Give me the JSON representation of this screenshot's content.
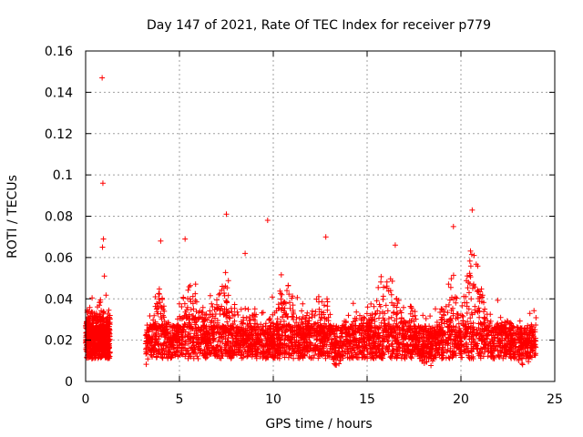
{
  "chart_data": {
    "type": "scatter",
    "title": "Day 147 of 2021, Rate Of TEC Index for receiver p779",
    "xlabel": "GPS time / hours",
    "ylabel": "ROTI / TECUs",
    "xlim": [
      0,
      25
    ],
    "ylim": [
      0,
      0.16
    ],
    "x_ticks": [
      0,
      5,
      10,
      15,
      20,
      25
    ],
    "x_tick_labels": [
      "0",
      "5",
      "10",
      "15",
      "20",
      "25"
    ],
    "y_ticks": [
      0,
      0.02,
      0.04,
      0.06,
      0.08,
      0.1,
      0.12,
      0.14,
      0.16
    ],
    "y_tick_labels": [
      "0",
      "0.02",
      "0.04",
      "0.06",
      "0.08",
      "0.1",
      "0.12",
      "0.14",
      "0.16"
    ],
    "grid": true,
    "marker": "+",
    "marker_color": "#ff0000",
    "outliers": [
      {
        "x": 0.88,
        "y": 0.147
      },
      {
        "x": 0.92,
        "y": 0.096
      },
      {
        "x": 0.95,
        "y": 0.069
      },
      {
        "x": 0.9,
        "y": 0.065
      },
      {
        "x": 1.0,
        "y": 0.051
      },
      {
        "x": 7.5,
        "y": 0.081
      },
      {
        "x": 9.7,
        "y": 0.078
      },
      {
        "x": 20.6,
        "y": 0.083
      },
      {
        "x": 19.6,
        "y": 0.075
      },
      {
        "x": 5.3,
        "y": 0.069
      },
      {
        "x": 12.8,
        "y": 0.07
      },
      {
        "x": 16.5,
        "y": 0.066
      },
      {
        "x": 4.0,
        "y": 0.068
      },
      {
        "x": 20.7,
        "y": 0.061
      },
      {
        "x": 8.5,
        "y": 0.062
      }
    ],
    "data_segments": [
      {
        "x_start": 0.0,
        "x_end": 1.3,
        "y_typical_min": 0.005,
        "y_typical_max": 0.04
      },
      {
        "x_start": 3.2,
        "x_end": 24.0,
        "y_typical_min": 0.005,
        "y_typical_max": 0.045
      }
    ],
    "series": [
      {
        "name": "ROTI",
        "color": "#ff0000"
      }
    ]
  }
}
